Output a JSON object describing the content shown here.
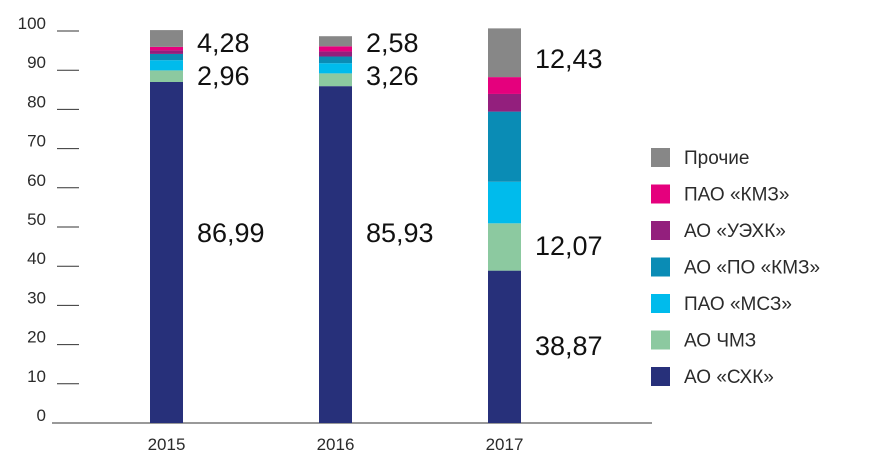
{
  "chart_data": {
    "type": "bar",
    "stacked": true,
    "categories": [
      "2015",
      "2016",
      "2017"
    ],
    "ylim": [
      0,
      100
    ],
    "yticks": [
      0,
      10,
      20,
      30,
      40,
      50,
      60,
      70,
      80,
      90,
      100
    ],
    "grid": false,
    "legend_position": "right",
    "series": [
      {
        "name": "АО «СХК»",
        "color": "#27307a",
        "values": [
          86.99,
          85.93,
          38.87
        ]
      },
      {
        "name": "АО ЧМЗ",
        "color": "#8cc9a0",
        "values": [
          2.96,
          3.26,
          12.07
        ]
      },
      {
        "name": "ПАО «МСЗ»",
        "color": "#00bbec",
        "values": [
          2.6,
          2.6,
          10.6
        ]
      },
      {
        "name": "АО «ПО «КМЗ»",
        "color": "#0a8cb5",
        "values": [
          1.6,
          1.7,
          17.9
        ]
      },
      {
        "name": "АО «УЭХК»",
        "color": "#931f7d",
        "values": [
          0.9,
          1.3,
          4.5
        ]
      },
      {
        "name": "ПАО «КМЗ»",
        "color": "#e5007d",
        "values": [
          0.9,
          1.3,
          4.3
        ]
      },
      {
        "name": "Прочие",
        "color": "#878787",
        "values": [
          4.28,
          2.58,
          12.43
        ]
      }
    ],
    "data_labels": [
      {
        "category": "2015",
        "series": "Прочие",
        "text": "4,28"
      },
      {
        "category": "2015",
        "series": "АО ЧМЗ",
        "text": "2,96"
      },
      {
        "category": "2015",
        "series": "АО «СХК»",
        "text": "86,99"
      },
      {
        "category": "2016",
        "series": "Прочие",
        "text": "2,58"
      },
      {
        "category": "2016",
        "series": "АО ЧМЗ",
        "text": "3,26"
      },
      {
        "category": "2016",
        "series": "АО «СХК»",
        "text": "85,93"
      },
      {
        "category": "2017",
        "series": "Прочие",
        "text": "12,43"
      },
      {
        "category": "2017",
        "series": "АО ЧМЗ",
        "text": "12,07"
      },
      {
        "category": "2017",
        "series": "АО «СХК»",
        "text": "38,87"
      }
    ],
    "legend_order": [
      "Прочие",
      "ПАО «КМЗ»",
      "АО «УЭХК»",
      "АО «ПО «КМЗ»",
      "ПАО «МСЗ»",
      "АО ЧМЗ",
      "АО «СХК»"
    ]
  }
}
